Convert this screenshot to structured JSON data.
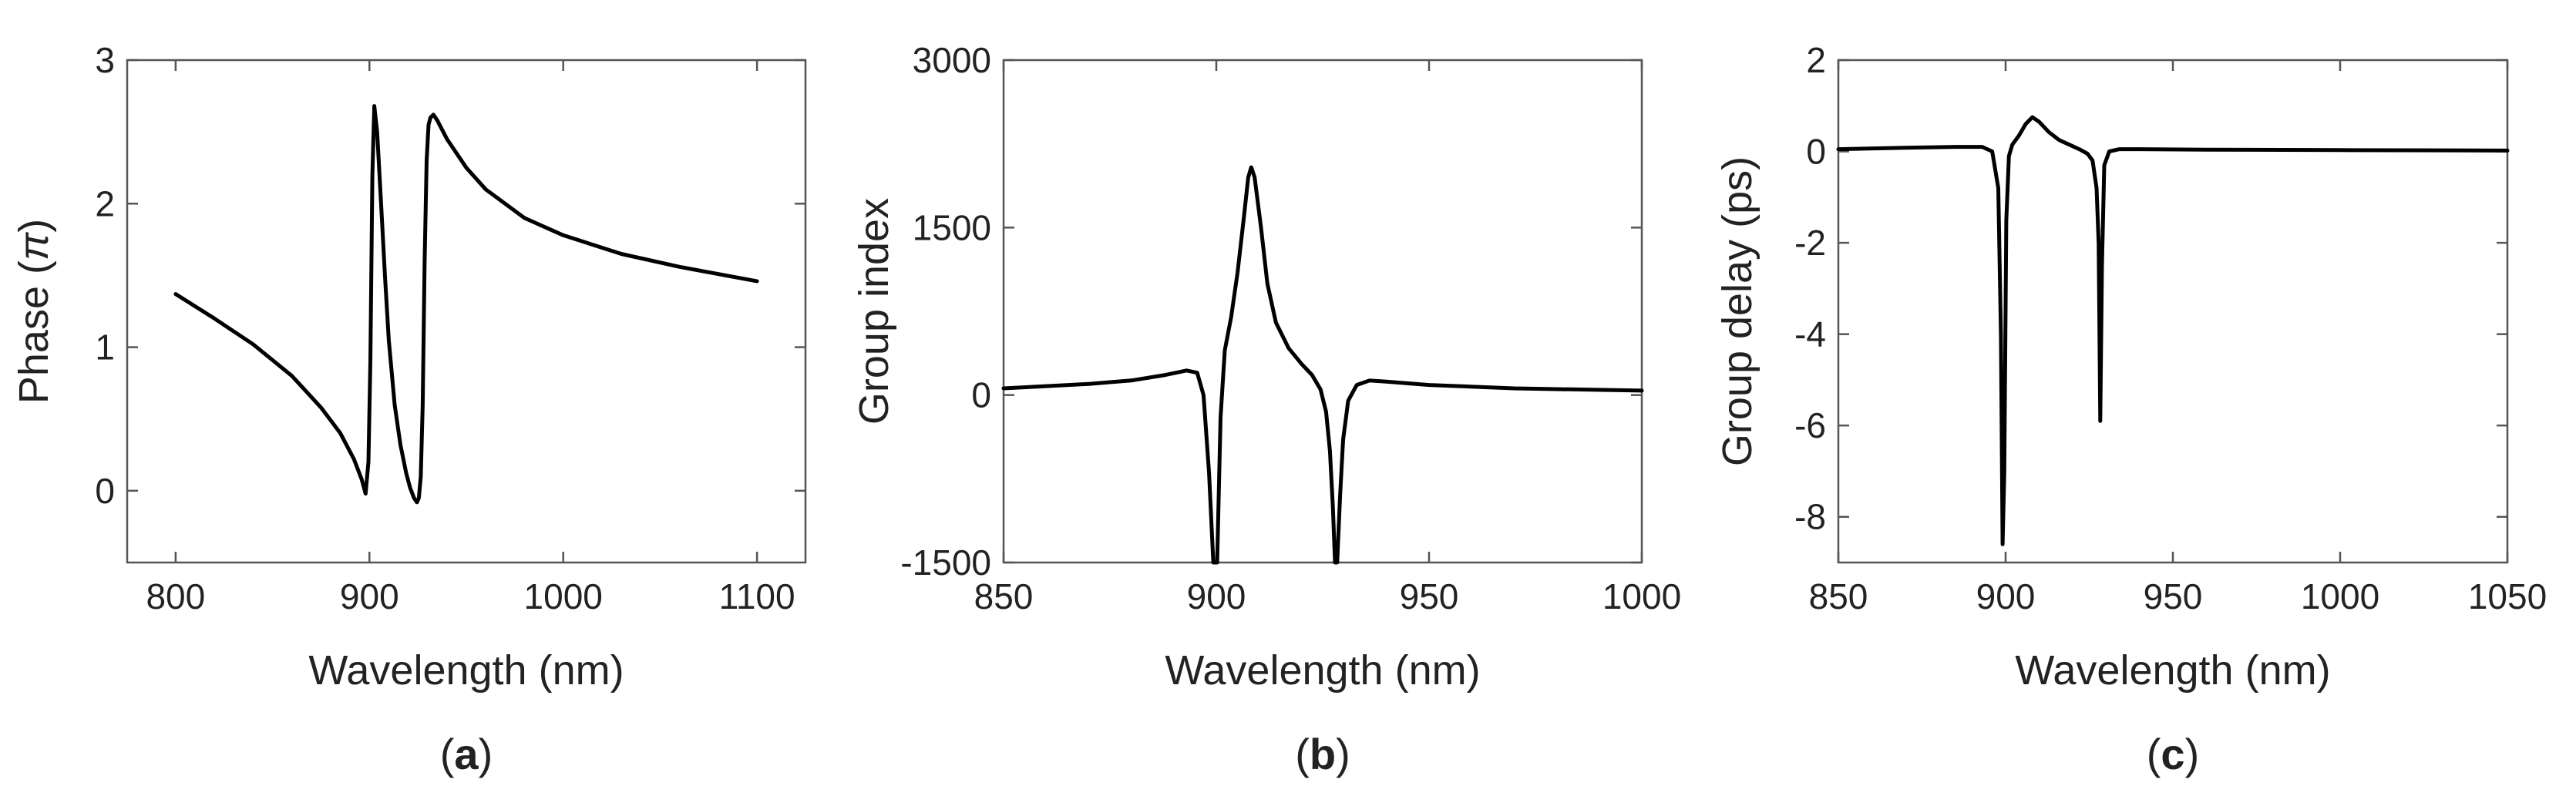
{
  "chart_data": [
    {
      "id": "a",
      "type": "line",
      "panel_label": "a",
      "xlabel": "Wavelength (nm)",
      "ylabel": "Phase (π)",
      "ylabel_main": "Phase (",
      "ylabel_symbol": "π",
      "ylabel_close": ")",
      "xlim": [
        775,
        1125
      ],
      "ylim": [
        -0.5,
        3
      ],
      "xticks": [
        800,
        900,
        1000,
        1100
      ],
      "yticks": [
        0,
        1,
        2,
        3
      ],
      "series": [
        {
          "name": "phase",
          "x": [
            800,
            820,
            840,
            860,
            875,
            885,
            892,
            896,
            898,
            899.5,
            900.5,
            901.5,
            902.5,
            904,
            906,
            908,
            910,
            913,
            916,
            919,
            921,
            923,
            924.5,
            925.5,
            926.5,
            927.5,
            928.5,
            929.5,
            930.5,
            931.5,
            933,
            935,
            940,
            950,
            960,
            980,
            1000,
            1030,
            1060,
            1100
          ],
          "y": [
            1.37,
            1.2,
            1.02,
            0.8,
            0.58,
            0.4,
            0.22,
            0.08,
            -0.02,
            0.2,
            0.9,
            2.2,
            2.68,
            2.5,
            2.0,
            1.5,
            1.05,
            0.6,
            0.32,
            0.12,
            0.02,
            -0.05,
            -0.08,
            -0.05,
            0.1,
            0.6,
            1.6,
            2.3,
            2.55,
            2.6,
            2.62,
            2.58,
            2.45,
            2.25,
            2.1,
            1.9,
            1.78,
            1.65,
            1.56,
            1.46
          ]
        }
      ]
    },
    {
      "id": "b",
      "type": "line",
      "panel_label": "b",
      "xlabel": "Wavelength (nm)",
      "ylabel": "Group index",
      "xlim": [
        850,
        1000
      ],
      "ylim": [
        -1500,
        3000
      ],
      "xticks": [
        850,
        900,
        950,
        1000
      ],
      "yticks": [
        -1500,
        0,
        1500,
        3000
      ],
      "series": [
        {
          "name": "group-index",
          "x": [
            850,
            870,
            880,
            888,
            893,
            895.5,
            897,
            898.3,
            899.3,
            900.2,
            901,
            902,
            903.5,
            905,
            906.5,
            907.5,
            908.2,
            909,
            910.5,
            912,
            914,
            917,
            920,
            922.5,
            924.5,
            925.8,
            926.7,
            927.4,
            927.9,
            928.4,
            929.1,
            929.8,
            931,
            933,
            936,
            940,
            950,
            970,
            1000
          ],
          "y": [
            60,
            100,
            130,
            180,
            220,
            200,
            0,
            -700,
            -1500,
            -1500,
            -200,
            400,
            700,
            1100,
            1600,
            1950,
            2040,
            1950,
            1500,
            1000,
            650,
            420,
            280,
            180,
            50,
            -150,
            -500,
            -1000,
            -1500,
            -1500,
            -900,
            -400,
            -50,
            90,
            130,
            120,
            90,
            60,
            40
          ]
        }
      ]
    },
    {
      "id": "c",
      "type": "line",
      "panel_label": "c",
      "xlabel": "Wavelength (nm)",
      "ylabel": "Group delay (ps)",
      "xlim": [
        850,
        1050
      ],
      "ylim": [
        -9,
        2
      ],
      "xticks": [
        850,
        900,
        950,
        1000,
        1050
      ],
      "yticks": [
        -8,
        -6,
        -4,
        -2,
        0,
        2
      ],
      "series": [
        {
          "name": "group-delay",
          "x": [
            850,
            870,
            885,
            893,
            896,
            897.8,
            898.6,
            899.1,
            899.6,
            900.2,
            901,
            902,
            904,
            906,
            908,
            910,
            913,
            916,
            919,
            922,
            924.5,
            926,
            927.2,
            927.8,
            928.3,
            928.8,
            929.5,
            931,
            934,
            940,
            960,
            1000,
            1050
          ],
          "y": [
            0.05,
            0.08,
            0.1,
            0.1,
            0.0,
            -0.8,
            -4.0,
            -8.6,
            -7.0,
            -1.5,
            -0.1,
            0.15,
            0.35,
            0.6,
            0.75,
            0.65,
            0.42,
            0.25,
            0.15,
            0.05,
            -0.05,
            -0.2,
            -0.8,
            -2.0,
            -5.9,
            -2.5,
            -0.3,
            0.0,
            0.05,
            0.05,
            0.04,
            0.03,
            0.02
          ]
        }
      ]
    }
  ]
}
